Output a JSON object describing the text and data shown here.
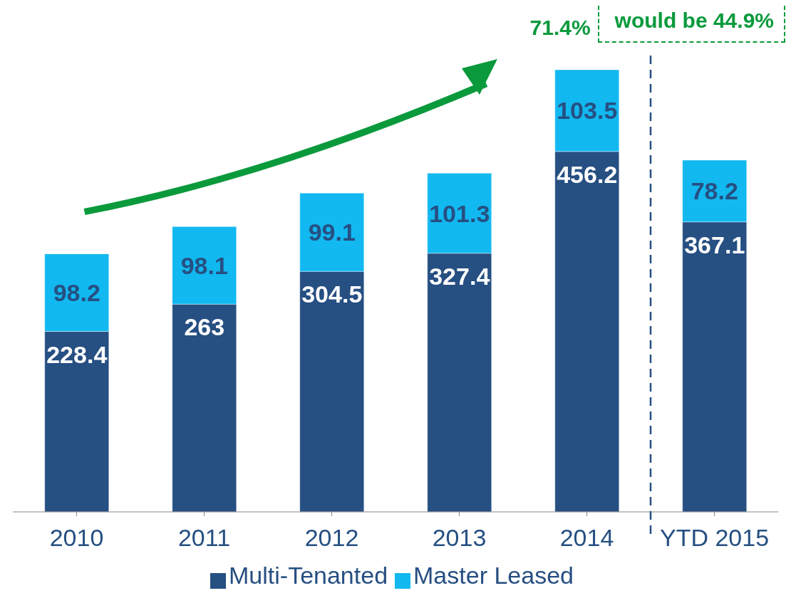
{
  "chart_data": {
    "type": "bar",
    "stacked": true,
    "categories": [
      "2010",
      "2011",
      "2012",
      "2013",
      "2014",
      "YTD 2015"
    ],
    "series": [
      {
        "name": "Multi-Tenanted",
        "color": "#264f82",
        "values": [
          228.4,
          263,
          304.5,
          327.4,
          456.2,
          367.1
        ]
      },
      {
        "name": "Master Leased",
        "color": "#12b8f0",
        "values": [
          98.2,
          98.1,
          99.1,
          101.3,
          103.5,
          78.2
        ]
      }
    ],
    "data_labels": true,
    "legend": "bottom",
    "tick_labels": "x",
    "grid": false,
    "annotations": [
      "71.4%",
      "would be 44.9%"
    ]
  }
}
